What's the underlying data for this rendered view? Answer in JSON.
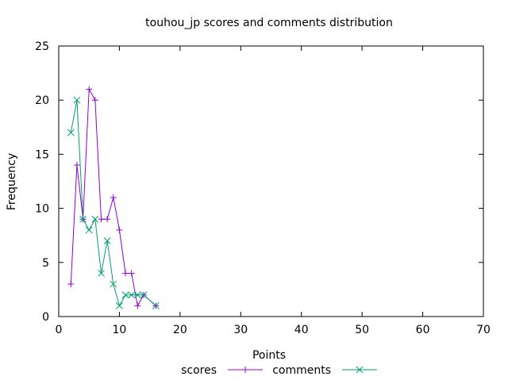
{
  "chart_data": {
    "type": "line",
    "title": "touhou_jp scores and comments distribution",
    "xlabel": "Points",
    "ylabel": "Frequency",
    "xlim": [
      0,
      70
    ],
    "ylim": [
      0,
      25
    ],
    "xticks": [
      0,
      10,
      20,
      30,
      40,
      50,
      60,
      70
    ],
    "yticks": [
      0,
      5,
      10,
      15,
      20,
      25
    ],
    "grid": false,
    "legend_position": "bottom-center",
    "series": [
      {
        "name": "scores",
        "color": "#9400d3",
        "marker": "plus",
        "x": [
          2,
          3,
          4,
          5,
          6,
          7,
          8,
          9,
          10,
          11,
          12,
          13,
          14,
          16
        ],
        "y": [
          3,
          14,
          9,
          21,
          20,
          9,
          9,
          11,
          8,
          4,
          4,
          1,
          2,
          1
        ]
      },
      {
        "name": "comments",
        "color": "#009e73",
        "marker": "cross",
        "x": [
          2,
          3,
          4,
          5,
          6,
          7,
          8,
          9,
          10,
          11,
          12,
          13,
          14,
          16
        ],
        "y": [
          17,
          20,
          9,
          8,
          9,
          4,
          7,
          3,
          1,
          2,
          2,
          2,
          2,
          1
        ]
      }
    ]
  }
}
